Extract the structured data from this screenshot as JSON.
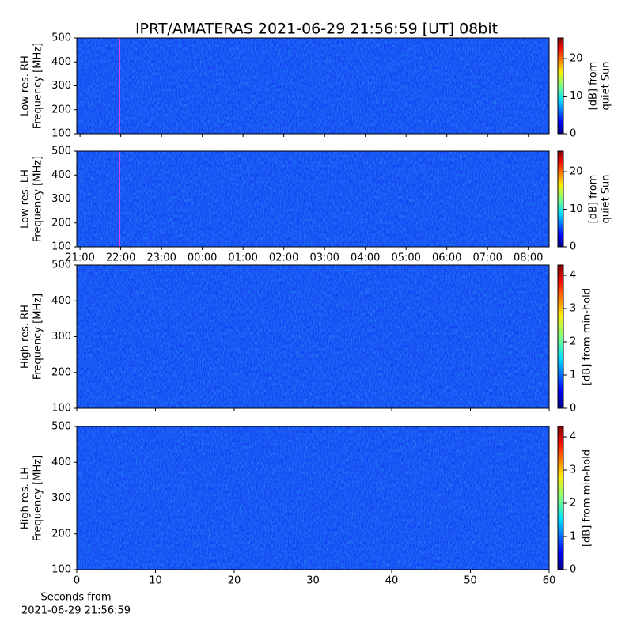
{
  "title": "IPRT/AMATERAS 2021-06-29 21:56:59 [UT]   08bit",
  "chart_data": [
    {
      "type": "heatmap",
      "ylabel": [
        "Low res. RH",
        "Frequency [MHz]"
      ],
      "ylim": [
        100,
        500
      ],
      "yticks": [
        100,
        200,
        300,
        400,
        500
      ],
      "colormap": "jet",
      "clim": [
        0,
        25.5
      ],
      "cticks": [
        0,
        10,
        20
      ],
      "clabel": [
        "[dB] from",
        "quiet Sun"
      ]
    },
    {
      "type": "heatmap",
      "ylabel": [
        "Low res. LH",
        "Frequency [MHz]"
      ],
      "ylim": [
        100,
        500
      ],
      "yticks": [
        100,
        200,
        300,
        400,
        500
      ],
      "xlim": [
        20.92,
        32.51
      ],
      "xticks": [
        {
          "value": 21,
          "label": "21:00"
        },
        {
          "value": 22,
          "label": "22:00"
        },
        {
          "value": 23,
          "label": "23:00"
        },
        {
          "value": 24,
          "label": "00:00"
        },
        {
          "value": 25,
          "label": "01:00"
        },
        {
          "value": 26,
          "label": "02:00"
        },
        {
          "value": 27,
          "label": "03:00"
        },
        {
          "value": 28,
          "label": "04:00"
        },
        {
          "value": 29,
          "label": "05:00"
        },
        {
          "value": 30,
          "label": "06:00"
        },
        {
          "value": 31,
          "label": "07:00"
        },
        {
          "value": 32,
          "label": "08:00"
        }
      ],
      "colormap": "jet",
      "clim": [
        0,
        25.5
      ],
      "cticks": [
        0,
        10,
        20
      ],
      "clabel": [
        "[dB] from",
        "quiet Sun"
      ]
    },
    {
      "type": "heatmap",
      "ylabel": [
        "High res. RH",
        "Frequency [MHz]"
      ],
      "ylim": [
        100,
        500
      ],
      "yticks": [
        100,
        200,
        300,
        400,
        500
      ],
      "colormap": "jet",
      "clim": [
        0,
        4.31
      ],
      "cticks": [
        0,
        1,
        2,
        3,
        4
      ],
      "clabel": [
        "[dB] from min-hold"
      ]
    },
    {
      "type": "heatmap",
      "ylabel": [
        "High res. LH",
        "Frequency [MHz]"
      ],
      "ylim": [
        100,
        500
      ],
      "yticks": [
        100,
        200,
        300,
        400,
        500
      ],
      "xlim": [
        0,
        60
      ],
      "xticks": [
        0,
        10,
        20,
        30,
        40,
        50,
        60
      ],
      "xlabel": [
        "Seconds from",
        "2021-06-29 21:56:59"
      ],
      "colormap": "jet",
      "clim": [
        0,
        4.31
      ],
      "cticks": [
        0,
        1,
        2,
        3,
        4
      ],
      "clabel": [
        "[dB] from min-hold"
      ]
    }
  ]
}
